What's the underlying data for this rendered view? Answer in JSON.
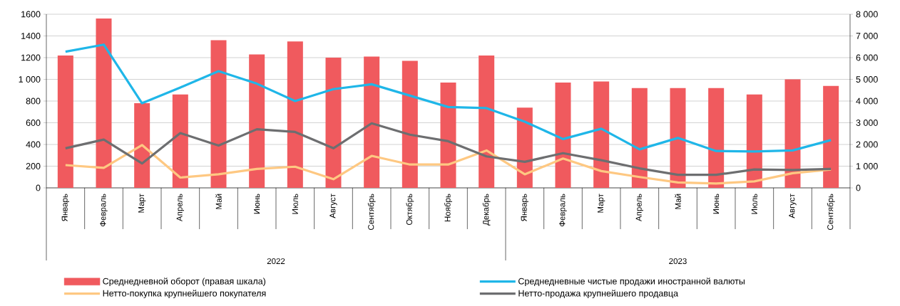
{
  "chart_data": {
    "type": "bar",
    "categories": [
      "Январь",
      "Февраль",
      "Март",
      "Апрель",
      "Май",
      "Июнь",
      "Июль",
      "Август",
      "Сентябрь",
      "Октябрь",
      "Ноябрь",
      "Декабрь",
      "Январь",
      "Февраль",
      "Март",
      "Апрель",
      "Май",
      "Июнь",
      "Июль",
      "Август",
      "Сентябрь"
    ],
    "annotations": [
      "2022",
      "2023"
    ],
    "series": [
      {
        "name": "Среднедневной оборот (правая шкала)",
        "axis": "y2",
        "color": "#f05a5e",
        "values": [
          6100,
          7800,
          3900,
          4300,
          6800,
          6150,
          6750,
          6000,
          6050,
          5850,
          4850,
          6100,
          3700,
          4850,
          4900,
          4600,
          4600,
          4600,
          4300,
          5000,
          4700
        ]
      },
      {
        "name": "Среднедневные чистые продажи иностранной валюты",
        "type": "line",
        "color": "#1fb6e8",
        "values": [
          1255,
          1320,
          780,
          925,
          1075,
          960,
          800,
          910,
          955,
          850,
          745,
          735,
          610,
          450,
          545,
          355,
          460,
          340,
          335,
          345,
          440
        ]
      },
      {
        "name": "Нетто-покупка крупнейшего покупателя",
        "type": "line",
        "color": "#fec882",
        "values": [
          210,
          185,
          395,
          95,
          125,
          175,
          195,
          80,
          295,
          215,
          215,
          345,
          125,
          270,
          155,
          100,
          50,
          40,
          60,
          135,
          170
        ]
      },
      {
        "name": "Нетто-продажа крупнейшего продавца",
        "type": "line",
        "color": "#6d6e70",
        "values": [
          365,
          445,
          225,
          505,
          390,
          540,
          515,
          365,
          595,
          490,
          430,
          290,
          240,
          320,
          255,
          180,
          120,
          120,
          170,
          165,
          175
        ]
      }
    ],
    "ylim": [
      0,
      1600
    ],
    "yticks": [
      0,
      200,
      400,
      600,
      800,
      {
        "value": 1000,
        "label": "1 000"
      },
      1200,
      1400,
      1600
    ],
    "y2lim": [
      0,
      8000
    ],
    "y2ticks": [
      0,
      {
        "value": 1000,
        "label": "1 000"
      },
      {
        "value": 2000,
        "label": "2 000"
      },
      {
        "value": 3000,
        "label": "3 000"
      },
      {
        "value": 4000,
        "label": "4 000"
      },
      {
        "value": 5000,
        "label": "5 000"
      },
      {
        "value": 6000,
        "label": "6 000"
      },
      {
        "value": 7000,
        "label": "7 000"
      },
      {
        "value": 8000,
        "label": "8 000"
      }
    ],
    "grid": "y",
    "legend": "bottom",
    "marker": "none",
    "line_style": "solid"
  }
}
